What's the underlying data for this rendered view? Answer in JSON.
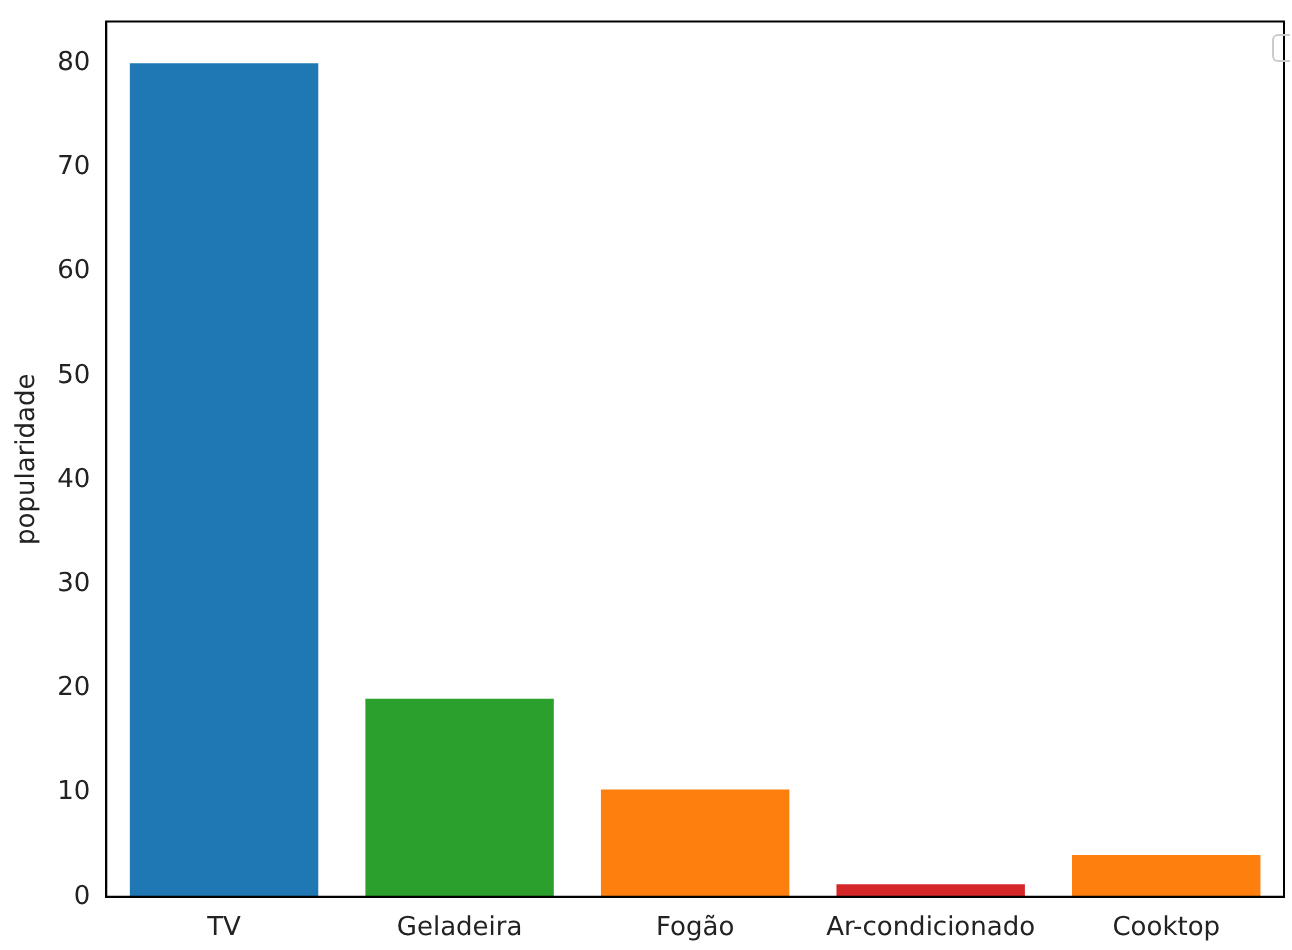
{
  "chart_data": {
    "type": "bar",
    "ylabel": "popularidade",
    "categories": [
      "TV",
      "Geladeira",
      "Fogão",
      "Ar-condicionado",
      "Cooktop"
    ],
    "values": [
      80,
      19,
      10.3,
      1.2,
      4
    ],
    "colors": [
      "#1f77b4",
      "#2ca02c",
      "#ff7f0e",
      "#d62728",
      "#ff7f0e"
    ],
    "ylim": [
      0,
      84
    ],
    "yticks": [
      0,
      10,
      20,
      30,
      40,
      50,
      60,
      70,
      80
    ],
    "grid": false
  }
}
